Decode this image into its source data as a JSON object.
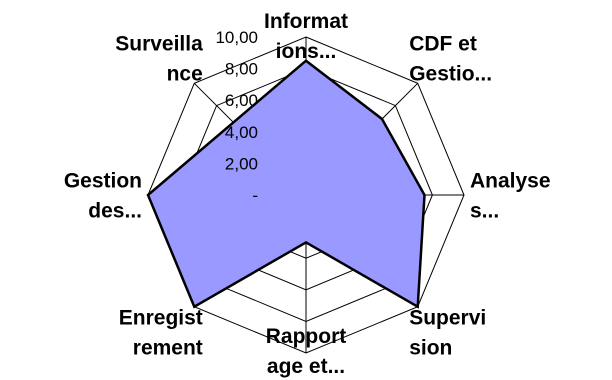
{
  "chart_data": {
    "type": "radar",
    "title": "",
    "categories": [
      [
        "Informat",
        "ions..."
      ],
      [
        "CDF et",
        "Gestio..."
      ],
      [
        "Analyse",
        "s..."
      ],
      [
        "Supervi",
        "sion"
      ],
      [
        "Rapport",
        "age et..."
      ],
      [
        "Enregist",
        "rement"
      ],
      [
        "Gestion",
        "des..."
      ],
      [
        "Surveilla",
        "nce"
      ]
    ],
    "rlim": [
      0,
      10
    ],
    "tick_labels": [
      "-",
      "2,00",
      "4,00",
      "6,00",
      "8,00",
      "10,00"
    ],
    "grid": true,
    "legend": "none",
    "series": [
      {
        "values": [
          8.5,
          6.8,
          7.5,
          10,
          3,
          10,
          10,
          6.5
        ],
        "fill": "#9999ff",
        "stroke": "#000000"
      }
    ]
  }
}
